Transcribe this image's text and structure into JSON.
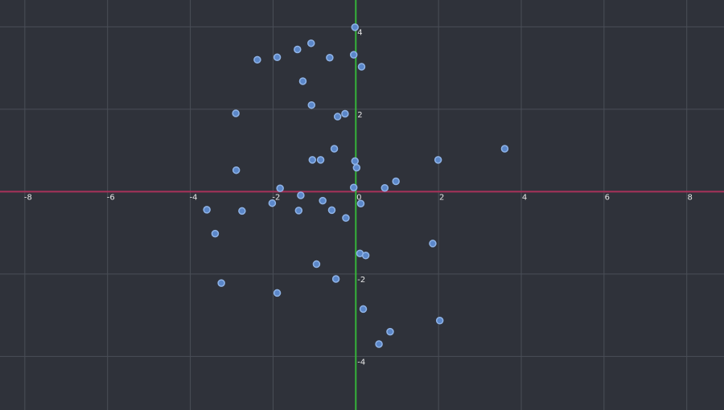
{
  "chart_data": {
    "type": "scatter",
    "title": "",
    "xlabel": "",
    "ylabel": "",
    "xlim": [
      -8.6,
      8.9
    ],
    "ylim": [
      -5.3,
      4.65
    ],
    "grid": true,
    "x_ticks": [
      -8,
      -6,
      -4,
      -2,
      0,
      2,
      4,
      6,
      8
    ],
    "x_tick_labels": [
      "-8",
      "-6",
      "-4",
      "-2",
      "0",
      "2",
      "4",
      "6",
      "8"
    ],
    "y_ticks": [
      4,
      2,
      -2,
      -4
    ],
    "y_tick_labels": [
      "4",
      "2",
      "-2",
      "-4"
    ],
    "colors": {
      "background": "#2f323a",
      "grid": "#4a4e57",
      "x_axis": "#a8325a",
      "y_axis": "#36b339",
      "point_fill": "#5b87c9",
      "point_stroke": "#8fb3e6",
      "tick_label": "#e6e6e6"
    },
    "series": [
      {
        "points": [
          [
            -0.02,
            3.99
          ],
          [
            -1.08,
            3.6
          ],
          [
            -1.41,
            3.45
          ],
          [
            -1.9,
            3.26
          ],
          [
            -2.38,
            3.2
          ],
          [
            -0.63,
            3.25
          ],
          [
            -0.05,
            3.32
          ],
          [
            0.14,
            3.03
          ],
          [
            -1.28,
            2.68
          ],
          [
            -1.07,
            2.1
          ],
          [
            -2.9,
            1.9
          ],
          [
            -0.26,
            1.89
          ],
          [
            -0.44,
            1.82
          ],
          [
            -0.52,
            1.04
          ],
          [
            -1.05,
            0.77
          ],
          [
            -0.85,
            0.77
          ],
          [
            1.99,
            0.77
          ],
          [
            3.6,
            1.04
          ],
          [
            -0.02,
            0.74
          ],
          [
            0.02,
            0.58
          ],
          [
            -2.89,
            0.52
          ],
          [
            0.97,
            0.25
          ],
          [
            0.7,
            0.09
          ],
          [
            -1.83,
            0.08
          ],
          [
            -0.05,
            0.1
          ],
          [
            -1.33,
            -0.09
          ],
          [
            -0.8,
            -0.22
          ],
          [
            -2.02,
            -0.28
          ],
          [
            0.12,
            -0.29
          ],
          [
            -3.6,
            -0.44
          ],
          [
            -2.75,
            -0.47
          ],
          [
            -1.38,
            -0.46
          ],
          [
            -0.58,
            -0.45
          ],
          [
            -0.24,
            -0.64
          ],
          [
            -3.4,
            -1.02
          ],
          [
            1.86,
            -1.26
          ],
          [
            0.1,
            -1.5
          ],
          [
            0.24,
            -1.55
          ],
          [
            -0.95,
            -1.76
          ],
          [
            -0.48,
            -2.12
          ],
          [
            -3.25,
            -2.22
          ],
          [
            -1.9,
            -2.46
          ],
          [
            0.18,
            -2.85
          ],
          [
            2.03,
            -3.13
          ],
          [
            0.83,
            -3.4
          ],
          [
            0.56,
            -3.7
          ]
        ]
      }
    ]
  }
}
